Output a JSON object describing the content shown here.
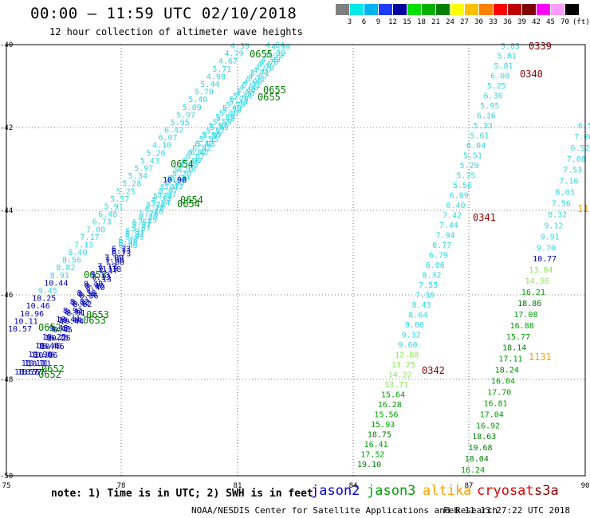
{
  "header": {
    "title": "00:00 – 11:59 UTC 02/10/2018",
    "subtitle": "12 hour collection of altimeter wave heights"
  },
  "scale": {
    "labels": [
      "3",
      "6",
      "9",
      "12",
      "15",
      "18",
      "21",
      "24",
      "27",
      "30",
      "33",
      "36",
      "39",
      "42",
      "45",
      "70",
      "(ft)"
    ],
    "colors": [
      "#808080",
      "#00e8e8",
      "#00b4f0",
      "#1e3cff",
      "#0000a0",
      "#00e000",
      "#00b000",
      "#008000",
      "#ffff00",
      "#ffc000",
      "#ff8000",
      "#ff0000",
      "#c00000",
      "#800000",
      "#ff00ff",
      "#ff9cff",
      "#000000"
    ]
  },
  "axes": {
    "x_ticks": [
      "75",
      "78",
      "81",
      "84",
      "87",
      "90"
    ],
    "y_ticks": [
      "-40",
      "-42",
      "-44",
      "-46",
      "-48",
      "-50"
    ]
  },
  "colors": {
    "cyan": "#30d8e6",
    "blue": "#0000b4",
    "lightgreen": "#88e858",
    "green": "#00a000",
    "darkgreen": "#008000",
    "orange": "#ffa000",
    "darkred": "#8b0000"
  },
  "track_values": {
    "west_a": [
      "4.39",
      "4.79",
      "4.67",
      "5.71",
      "4.98",
      "5.44",
      "5.70",
      "5.40",
      "5.09",
      "5.97",
      "5.95",
      "6.42",
      "6.07",
      "4.10",
      "5.20",
      "5.43",
      "5.97",
      "5.34",
      "5.28",
      "5.25",
      "5.57",
      "5.91",
      "6.48",
      "6.73",
      "7.00",
      "7.17",
      "7.13",
      "8.40",
      "8.56",
      "8.82",
      "8.91",
      "10.44",
      "9.45",
      "10.25",
      "10.46",
      "10.96",
      "10.11",
      "10.57"
    ],
    "west_b": [
      "4.64",
      "10.98",
      "11.18"
    ],
    "east_a": [
      "5.85",
      "5.81",
      "5.81",
      "6.00",
      "5.25",
      "6.36",
      "5.95",
      "6.16",
      "5.33",
      "5.61",
      "6.04",
      "5.51",
      "5.29",
      "5.75",
      "5.56",
      "6.09",
      "6.40",
      "7.42",
      "7.44",
      "7.94",
      "6.77",
      "6.79",
      "6.06",
      "8.32",
      "7.55",
      "7.36",
      "8.43",
      "8.64",
      "9.06",
      "9.32",
      "9.60",
      "12.08",
      "13.25",
      "14.22",
      "13.71",
      "15.64",
      "16.28",
      "15.56",
      "15.93",
      "18.75",
      "16.41",
      "17.52",
      "19.10"
    ],
    "east_b": [
      "6.5",
      "7.00",
      "6.52",
      "7.08",
      "7.53",
      "7.16",
      "8.03",
      "7.56",
      "8.32",
      "9.12",
      "9.91",
      "9.70",
      "10.77",
      "13.04",
      "14.36",
      "16.21",
      "18.86",
      "17.08",
      "16.88",
      "15.77",
      "18.14",
      "17.11",
      "18.24",
      "16.04",
      "17.70",
      "16.81",
      "17.04",
      "16.92",
      "18.63",
      "19.68",
      "18.04",
      "16.24"
    ]
  },
  "time_labels": {
    "west": [
      "0655",
      "0655",
      "0655",
      "0654",
      "0654",
      "0654",
      "0653",
      "0653",
      "0653",
      "0652",
      "0652",
      "0652"
    ],
    "east": [
      "0339",
      "0340",
      "0341",
      "0342",
      "1131",
      "11"
    ]
  },
  "footer": {
    "note": "note: 1) Time is in UTC; 2) SWH is in feet",
    "satellites": [
      {
        "name": "jason2",
        "color": "#0000e0"
      },
      {
        "name": "jason3",
        "color": "#00a000"
      },
      {
        "name": "altika",
        "color": "#ffa000"
      },
      {
        "name": "cryosat",
        "color": "#e00000"
      },
      {
        "name": "s3a",
        "color": "#8b0000"
      }
    ],
    "credit": "NOAA/NESDIS Center for Satellite Applications and Research",
    "timestamp": "Feb 11 13:27:22 UTC 2018"
  }
}
